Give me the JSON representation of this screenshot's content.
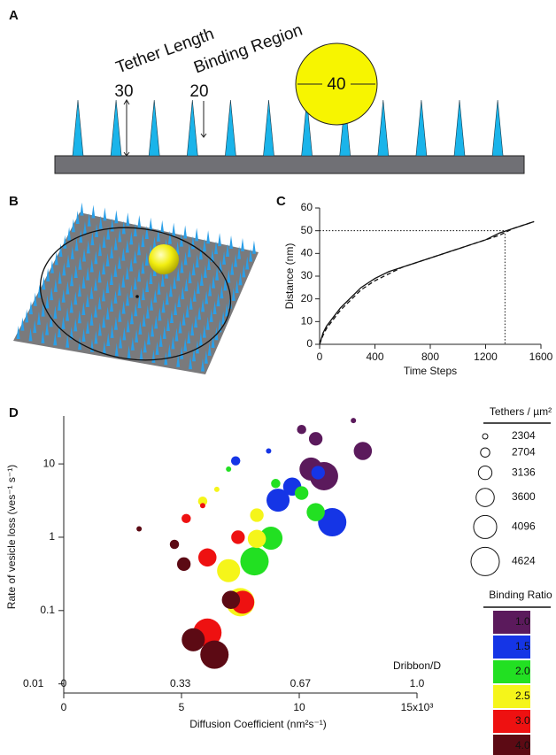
{
  "panel_labels": [
    "A",
    "B",
    "C",
    "D"
  ],
  "diagram": {
    "tether_length_label": "Tether Length",
    "binding_region_label": "Binding Region",
    "tether_length": 30,
    "binding_region": 20,
    "vesicle_diameter": 40
  },
  "chart_data": [
    {
      "type": "line",
      "xlabel": "Time Steps",
      "ylabel": "Distance (nm)",
      "x": [
        0,
        25,
        50,
        100,
        150,
        200,
        300,
        400,
        500,
        600,
        700,
        800,
        900,
        1000,
        1100,
        1200,
        1300,
        1400,
        1500,
        1550
      ],
      "series": [
        {
          "color": "#111111",
          "dash": "solid",
          "values": [
            0,
            5,
            8,
            12,
            16,
            19,
            25,
            29,
            32,
            34,
            36,
            38,
            40,
            42,
            44,
            46,
            49,
            51,
            53,
            54
          ]
        },
        {
          "color": "#111111",
          "dash": "dashed",
          "values": [
            0,
            4,
            7,
            11,
            15,
            18,
            24,
            28,
            31,
            34,
            36,
            38,
            40,
            42,
            44,
            46,
            48,
            51,
            53,
            54
          ]
        }
      ],
      "reference": {
        "x": 1340,
        "y": 50
      },
      "xlim": [
        0,
        1600
      ],
      "xticks": [
        0,
        400,
        800,
        1200,
        1600
      ],
      "ylim": [
        0,
        60
      ],
      "yticks": [
        0,
        10,
        20,
        30,
        40,
        50,
        60
      ]
    },
    {
      "type": "bubble",
      "xlabel": "Diffusion Coefficient (nm²s⁻¹)",
      "ylabel": "Rate of vesicle loss (ves⁻¹ s⁻¹)",
      "xlim": [
        0,
        15
      ],
      "xticks": [
        0,
        5,
        10,
        {
          "value": 15,
          "label": "15x10³"
        }
      ],
      "x2label": "Dribbon/D",
      "x2lim": [
        0,
        1
      ],
      "x2ticks": [
        0,
        0.33,
        0.67,
        {
          "value": 1,
          "label": "1.0"
        }
      ],
      "yscale": "log",
      "ylim": [
        0.0075,
        45
      ],
      "yticks": [
        0.01,
        0.1,
        1,
        10
      ],
      "size_legend": {
        "title": "Tethers / µm²",
        "values": [
          2304,
          2704,
          3136,
          3600,
          4096,
          4624
        ]
      },
      "color_legend_title": "Binding Ratio",
      "series": [
        {
          "name": "1.0",
          "color": "#5b1a5c",
          "x": [
            12.3,
            10.1,
            10.7,
            12.7,
            10.5,
            11.05
          ],
          "y": [
            39,
            29.5,
            22,
            15,
            8.5,
            6.8
          ],
          "size": [
            2304,
            2704,
            3136,
            3600,
            4096,
            4624
          ]
        },
        {
          "name": "1.5",
          "color": "#1535e6",
          "x": [
            8.7,
            7.3,
            10.8,
            9.7,
            9.1,
            11.4
          ],
          "y": [
            15,
            11,
            7.6,
            4.9,
            3.2,
            1.6
          ],
          "size": [
            2304,
            2704,
            3136,
            3600,
            4096,
            4624
          ]
        },
        {
          "name": "2.0",
          "color": "#22e022",
          "x": [
            7.0,
            9.0,
            10.1,
            10.7,
            8.8,
            8.1
          ],
          "y": [
            8.5,
            5.4,
            4,
            2.2,
            0.97,
            0.47
          ],
          "size": [
            2304,
            2704,
            3136,
            3600,
            4096,
            4624
          ]
        },
        {
          "name": "2.5",
          "color": "#f5f51a",
          "x": [
            6.5,
            5.9,
            8.2,
            8.2,
            7.0,
            7.5
          ],
          "y": [
            4.5,
            3.1,
            2,
            0.95,
            0.35,
            0.13
          ],
          "size": [
            2304,
            2704,
            3136,
            3600,
            4096,
            4624
          ]
        },
        {
          "name": "3.0",
          "color": "#ee1111",
          "x": [
            5.9,
            5.2,
            7.4,
            6.1,
            7.6,
            6.1
          ],
          "y": [
            2.7,
            1.8,
            1.0,
            0.53,
            0.13,
            0.05
          ],
          "size": [
            2304,
            2704,
            3136,
            3600,
            4096,
            4624
          ]
        },
        {
          "name": "4.0",
          "color": "#5c0a14",
          "x": [
            3.2,
            4.7,
            5.1,
            7.1,
            5.5,
            6.4
          ],
          "y": [
            1.3,
            0.8,
            0.43,
            0.14,
            0.04,
            0.025
          ],
          "size": [
            2304,
            2704,
            3136,
            3600,
            4096,
            4624
          ]
        }
      ]
    }
  ]
}
